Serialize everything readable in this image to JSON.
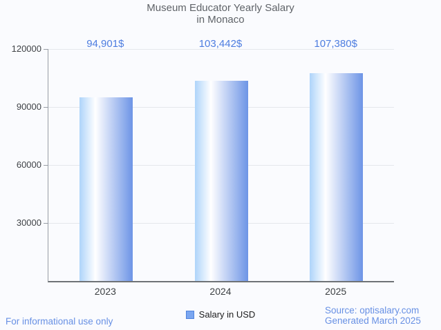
{
  "title": {
    "line1": "Museum Educator Yearly Salary",
    "line2": "in Monaco"
  },
  "chart_data": {
    "type": "bar",
    "title": "Museum Educator Yearly Salary in Monaco",
    "categories": [
      "2023",
      "2024",
      "2025"
    ],
    "values": [
      94901,
      103442,
      107380
    ],
    "value_labels": [
      "94,901$",
      "103,442$",
      "107,380$"
    ],
    "series_name": "Salary in USD",
    "xlabel": "",
    "ylabel": "",
    "ylim": [
      0,
      120000
    ],
    "yticks": [
      30000,
      60000,
      90000,
      120000
    ],
    "ytick_labels": [
      "30000",
      "60000",
      "90000",
      "120000"
    ],
    "grid": true,
    "legend_position": "bottom-center"
  },
  "legend": {
    "items": [
      {
        "label": "Salary in USD",
        "marker_fill": "#7aa6f0",
        "marker_border": "#4f83dd"
      }
    ]
  },
  "footer": {
    "disclaimer": "For informational use only",
    "source": "Source: optisalary.com",
    "generated": "Generated March 2025"
  },
  "colors": {
    "background": "#fafbfe",
    "title_text": "#5f6368",
    "value_label_text": "#4d7de0",
    "tick_label_text": "#3f4246",
    "x_label_text": "#3c4043",
    "axis_line": "#989da4",
    "baseline": "#6e7276",
    "gridline": "#e4e7ec",
    "footer_text": "#6790e4",
    "bar_gradient": [
      "#aed4fa",
      "#ffffff",
      "#6d94e6"
    ]
  }
}
